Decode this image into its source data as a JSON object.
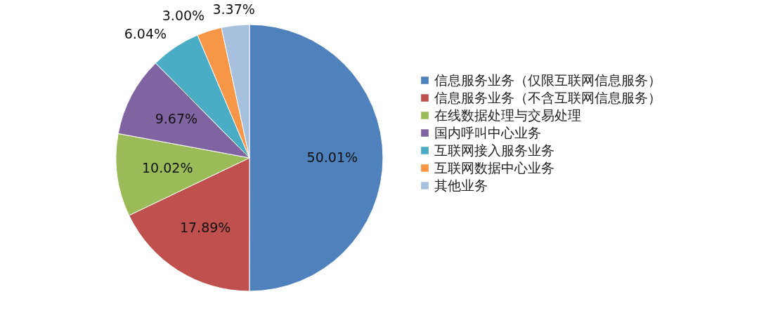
{
  "chart_data": {
    "type": "pie",
    "categories": [
      "信息服务业务（仅限互联网信息服务）",
      "信息服务业务（不含互联网信息服务）",
      "在线数据处理与交易处理",
      "国内呼叫中心业务",
      "互联网接入服务业务",
      "互联网数据中心业务",
      "其他业务"
    ],
    "values": [
      50.01,
      17.89,
      10.02,
      9.67,
      6.04,
      3.0,
      3.37
    ],
    "value_labels": [
      "50.01%",
      "17.89%",
      "10.02%",
      "9.67%",
      "6.04%",
      "3.00%",
      "3.37%"
    ],
    "colors": [
      "#4f81bd",
      "#c0504d",
      "#9bbb59",
      "#8064a2",
      "#4bacc6",
      "#f79646",
      "#a7c0de"
    ],
    "legend": "right"
  }
}
